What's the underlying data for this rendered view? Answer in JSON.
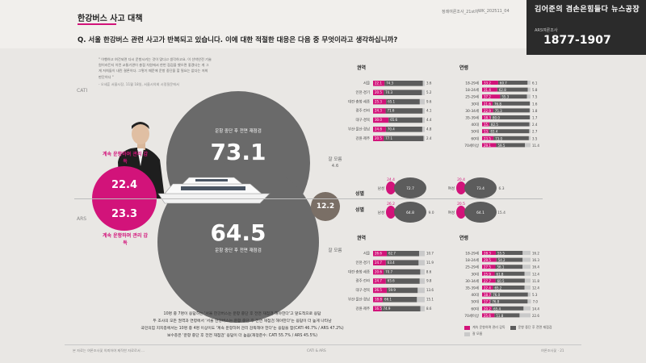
{
  "header": {
    "section_title": "한강버스 사고 대책",
    "question": "Q. 서울 한강버스 관련 사고가 반복되고 있습니다. 이에 대한 적절한 대응은 다음 중 무엇이라고 생각하십니까?",
    "issue": "정례여론조사_21st차",
    "date": "WK_202511_04",
    "brand_title": "김어준의 겸손은힘들다 뉴스공장",
    "brand_sub": "ARS여론조사",
    "brand_code": "1877-1907"
  },
  "quote": "\" 이행하고 여건되면 다시 운항시키는 것이 맞다고 생각하고요. 이 선박안전 기술원이라든지 이런 교통기관이 총점 차원에서 한번 점검을 했으면 좋겠다는 게 그게 저희들이 내린 결론이다. 그렇기 때문에 운항 중단을 할 필요는 없다는 저희 판단이다 \"",
  "quote_source": "- 오세훈 서울시장, 11월 18일, 서울시의회 시정질문에서",
  "labels": {
    "cati": "CATI",
    "ars": "ARS"
  },
  "main": {
    "cati_halt": {
      "value": "73.1",
      "label": "운항 중단 후 전면 재점검"
    },
    "ars_halt": {
      "value": "64.5",
      "label": "운항 중단 후 전면 재점검"
    },
    "cati_keep": {
      "value": "22.4",
      "label": "계속 운항하며 관리 감독"
    },
    "ars_keep": {
      "value": "23.3",
      "label": "계속 운항하며 관리 감독"
    },
    "cati_unknown": {
      "value": "4.6",
      "label": "잘 모름"
    },
    "ars_unknown": {
      "value": "12.2",
      "label": "잘 모름"
    }
  },
  "section_titles": {
    "region": "권역",
    "age": "연령",
    "gender": "성별"
  },
  "gender": {
    "rows": [
      {
        "label": "남성",
        "values": [
          "24.4",
          "72.7",
          ""
        ]
      },
      {
        "label": "여성",
        "values": [
          "20.4",
          "73.4",
          "6.3"
        ]
      },
      {
        "label": "남성",
        "values": [
          "26.2",
          "64.8",
          "9.0"
        ]
      },
      {
        "label": "여성",
        "values": [
          "20.5",
          "64.1",
          "15.4"
        ]
      }
    ],
    "side_labels": [
      "성별",
      "성별"
    ]
  },
  "regions": [
    "서울",
    "인천·경기",
    "대전·충청·세종",
    "광주·전라",
    "대구·경북",
    "부산·울산·경남",
    "강원·제주"
  ],
  "ages": [
    "18-29세",
    "18-24세",
    "25-29세",
    "30대",
    "30-34세",
    "35-39세",
    "40대",
    "50대",
    "60대",
    "70세이상"
  ],
  "footnotes": [
    "10명 중 7명이 응답하는 '서울 한강버스는 운항 중단 후 전면 재점검 해야한다'고 앞도적으로 응답",
    "두 조사의 모든 권역과 연령에서 '서울 한강버스는 운항 중단 후 전면 재점검 해야한다'는 응답이 더 높게 나타남",
    "국민의힘 지지층에서는 10명 중 4명 이상이도 '계속 운항하며 관리 감독해야 한다'는 응답을 함(CATI 46.7% / ARS 47.2%)",
    "보수층은 '운항 중단 후 전면 재점검' 응답이 더 높음(재정준수: CATI 55.7% / ARS 45.5%)"
  ],
  "footer": {
    "left": "본 자료는 여론조사꽃 의뢰하여 제작한 자료로서 ...",
    "center": "CATI & ARS",
    "right": "여론조사꽃 · 21"
  },
  "legend": {
    "keep": "계속 운항하며 관리 감독",
    "halt": "운항 중단 후 전면 재점검",
    "unknown": "잘 모름"
  },
  "colors": {
    "pink": "#d2137a",
    "dark_grey": "#5c5c5c",
    "light_grey": "#c9c9c9",
    "brown": "#7a6f66"
  },
  "chart_data": [
    {
      "type": "bar",
      "title": "권역",
      "survey": "CATI",
      "categories": [
        "서울",
        "인천·경기",
        "대전·충청·세종",
        "광주·전라",
        "대구·경북",
        "부산·울산·경남",
        "강원·제주"
      ],
      "series": [
        {
          "name": "계속 운항하며 관리 감독",
          "values": [
            22.1,
            20.5,
            25.3,
            24.3,
            30.0,
            24.8,
            20.5
          ]
        },
        {
          "name": "운항 중단 후 전면 재점검",
          "values": [
            74.3,
            74.3,
            65.1,
            71.6,
            65.6,
            70.4,
            77.1
          ]
        },
        {
          "name": "잘 모름",
          "values": [
            3.6,
            5.2,
            9.6,
            4.1,
            4.4,
            4.8,
            2.4
          ]
        }
      ]
    },
    {
      "type": "bar",
      "title": "연령",
      "survey": "CATI",
      "categories": [
        "18-29세",
        "18-24세",
        "25-29세",
        "30대",
        "30-34세",
        "35-39세",
        "40대",
        "50대",
        "60대",
        "70세이상"
      ],
      "series": [
        {
          "name": "계속 운항하며 관리 감독",
          "values": [
            33.2,
            31.4,
            37.2,
            21.6,
            22.9,
            18.3,
            15.1,
            13.9,
            23.5,
            29.1
          ]
        },
        {
          "name": "운항 중단 후 전면 재점검",
          "values": [
            60.7,
            62.8,
            55.3,
            76.8,
            75.3,
            80.0,
            82.5,
            83.4,
            73.0,
            59.5
          ]
        },
        {
          "name": "잘 모름",
          "values": [
            6.1,
            5.8,
            7.5,
            1.6,
            1.8,
            1.7,
            2.4,
            2.7,
            3.5,
            11.4
          ]
        }
      ]
    },
    {
      "type": "bar",
      "title": "권역",
      "survey": "ARS",
      "categories": [
        "서울",
        "인천·경기",
        "대전·충청·세종",
        "광주·전라",
        "대구·경북",
        "부산·울산·경남",
        "강원·제주"
      ],
      "series": [
        {
          "name": "계속 운항하며 관리 감독",
          "values": [
            26.6,
            24.7,
            20.6,
            24.7,
            26.5,
            18.8,
            16.5
          ]
        },
        {
          "name": "운항 중단 후 전면 재점검",
          "values": [
            62.7,
            63.4,
            70.7,
            65.6,
            59.9,
            66.1,
            74.9
          ]
        },
        {
          "name": "잘 모름",
          "values": [
            10.7,
            11.9,
            8.6,
            9.8,
            13.6,
            15.1,
            8.6
          ]
        }
      ]
    },
    {
      "type": "bar",
      "title": "연령",
      "survey": "ARS",
      "categories": [
        "18-29세",
        "18-24세",
        "25-29세",
        "30대",
        "30-34세",
        "35-39세",
        "40대",
        "50대",
        "60대",
        "70세이상"
      ],
      "series": [
        {
          "name": "계속 운항하며 관리 감독",
          "values": [
            28.3,
            29.5,
            27.5,
            25.9,
            27.7,
            22.4,
            18.7,
            17.2,
            20.2,
            25.6
          ]
        },
        {
          "name": "운항 중단 후 전면 재점검",
          "values": [
            55.5,
            54.2,
            56.1,
            61.8,
            60.5,
            65.2,
            76.0,
            76.8,
            65.4,
            51.8
          ]
        },
        {
          "name": "잘 모름",
          "values": [
            16.2,
            16.3,
            16.4,
            12.4,
            11.8,
            12.4,
            5.3,
            7.0,
            14.4,
            22.6
          ]
        }
      ]
    },
    {
      "type": "pie",
      "title": "",
      "survey": "CATI",
      "categories": [
        "계속 운항하며 관리 감독",
        "운항 중단 후 전면 재점검",
        "잘 모름"
      ],
      "values": [
        22.4,
        73.1,
        4.6
      ]
    },
    {
      "type": "pie",
      "title": "",
      "survey": "ARS",
      "categories": [
        "계속 운항하며 관리 감독",
        "운항 중단 후 전면 재점검",
        "잘 모름"
      ],
      "values": [
        23.3,
        64.5,
        12.2
      ]
    }
  ]
}
